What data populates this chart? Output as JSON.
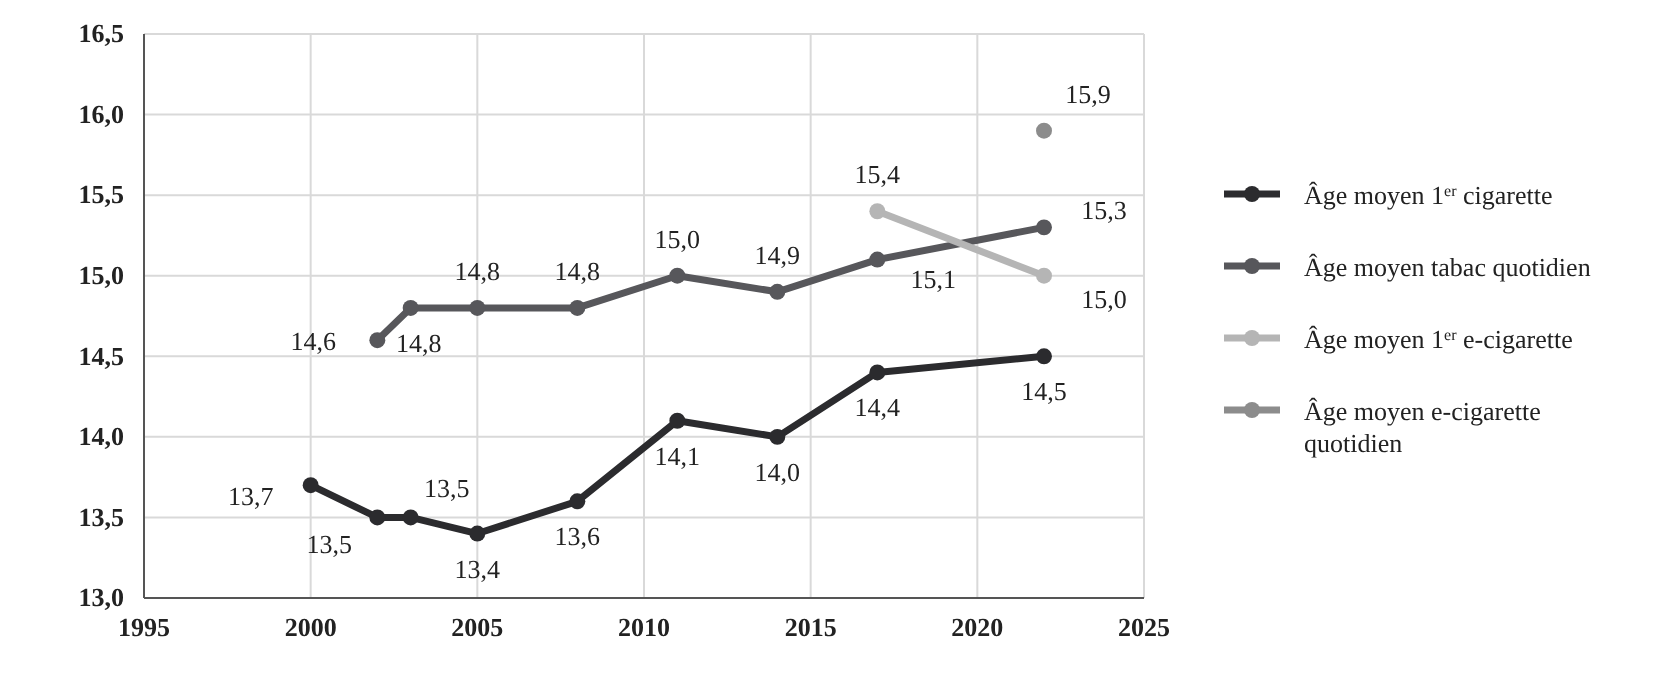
{
  "chart_data": {
    "type": "line",
    "xlim": [
      1995,
      2025
    ],
    "xticks": [
      1995,
      2000,
      2005,
      2010,
      2015,
      2020,
      2025
    ],
    "ylim": [
      13.0,
      16.5
    ],
    "yticks": [
      {
        "value": 13.0,
        "label": "13,0"
      },
      {
        "value": 13.5,
        "label": "13,5"
      },
      {
        "value": 14.0,
        "label": "14,0"
      },
      {
        "value": 14.5,
        "label": "14,5"
      },
      {
        "value": 15.0,
        "label": "15,0"
      },
      {
        "value": 15.5,
        "label": "15,5"
      },
      {
        "value": 16.0,
        "label": "16,0"
      },
      {
        "value": 16.5,
        "label": "16,5"
      }
    ],
    "grid": true,
    "legend": "right",
    "marker": "circle",
    "line_style": "solid",
    "series": [
      {
        "name": "Âge moyen 1$^{er}$ cigarette",
        "color": "#2b2b2e",
        "x": [
          2000,
          2002,
          2003,
          2005,
          2008,
          2011,
          2014,
          2017,
          2022
        ],
        "values": [
          13.7,
          13.5,
          13.5,
          13.4,
          13.6,
          14.1,
          14.0,
          14.4,
          14.5
        ],
        "value_labels": [
          "13,7",
          "13,5",
          "13,5",
          "13,4",
          "13,6",
          "14,1",
          "14,0",
          "14,4",
          "14,5"
        ]
      },
      {
        "name": "Âge moyen tabac quotidien",
        "color": "#57575b",
        "x": [
          2002,
          2003,
          2005,
          2008,
          2011,
          2014,
          2017,
          2022
        ],
        "values": [
          14.6,
          14.8,
          14.8,
          14.8,
          15.0,
          14.9,
          15.1,
          15.3
        ],
        "value_labels": [
          "14,6",
          "14,8",
          "14,8",
          "14,8",
          "15,0",
          "14,9",
          "15,1",
          "15,3"
        ]
      },
      {
        "name": "Âge moyen 1$^{er}$ e-cigarette",
        "color": "#b5b5b5",
        "x": [
          2017,
          2022
        ],
        "values": [
          15.4,
          15.0
        ],
        "value_labels": [
          "15,4",
          "15,0"
        ]
      },
      {
        "name": "Âge moyen e-cigarette quotidien",
        "type": "scatter",
        "color": "#8c8c8c",
        "x": [
          2022
        ],
        "values": [
          15.9
        ],
        "value_labels": [
          "15,9"
        ]
      }
    ]
  }
}
